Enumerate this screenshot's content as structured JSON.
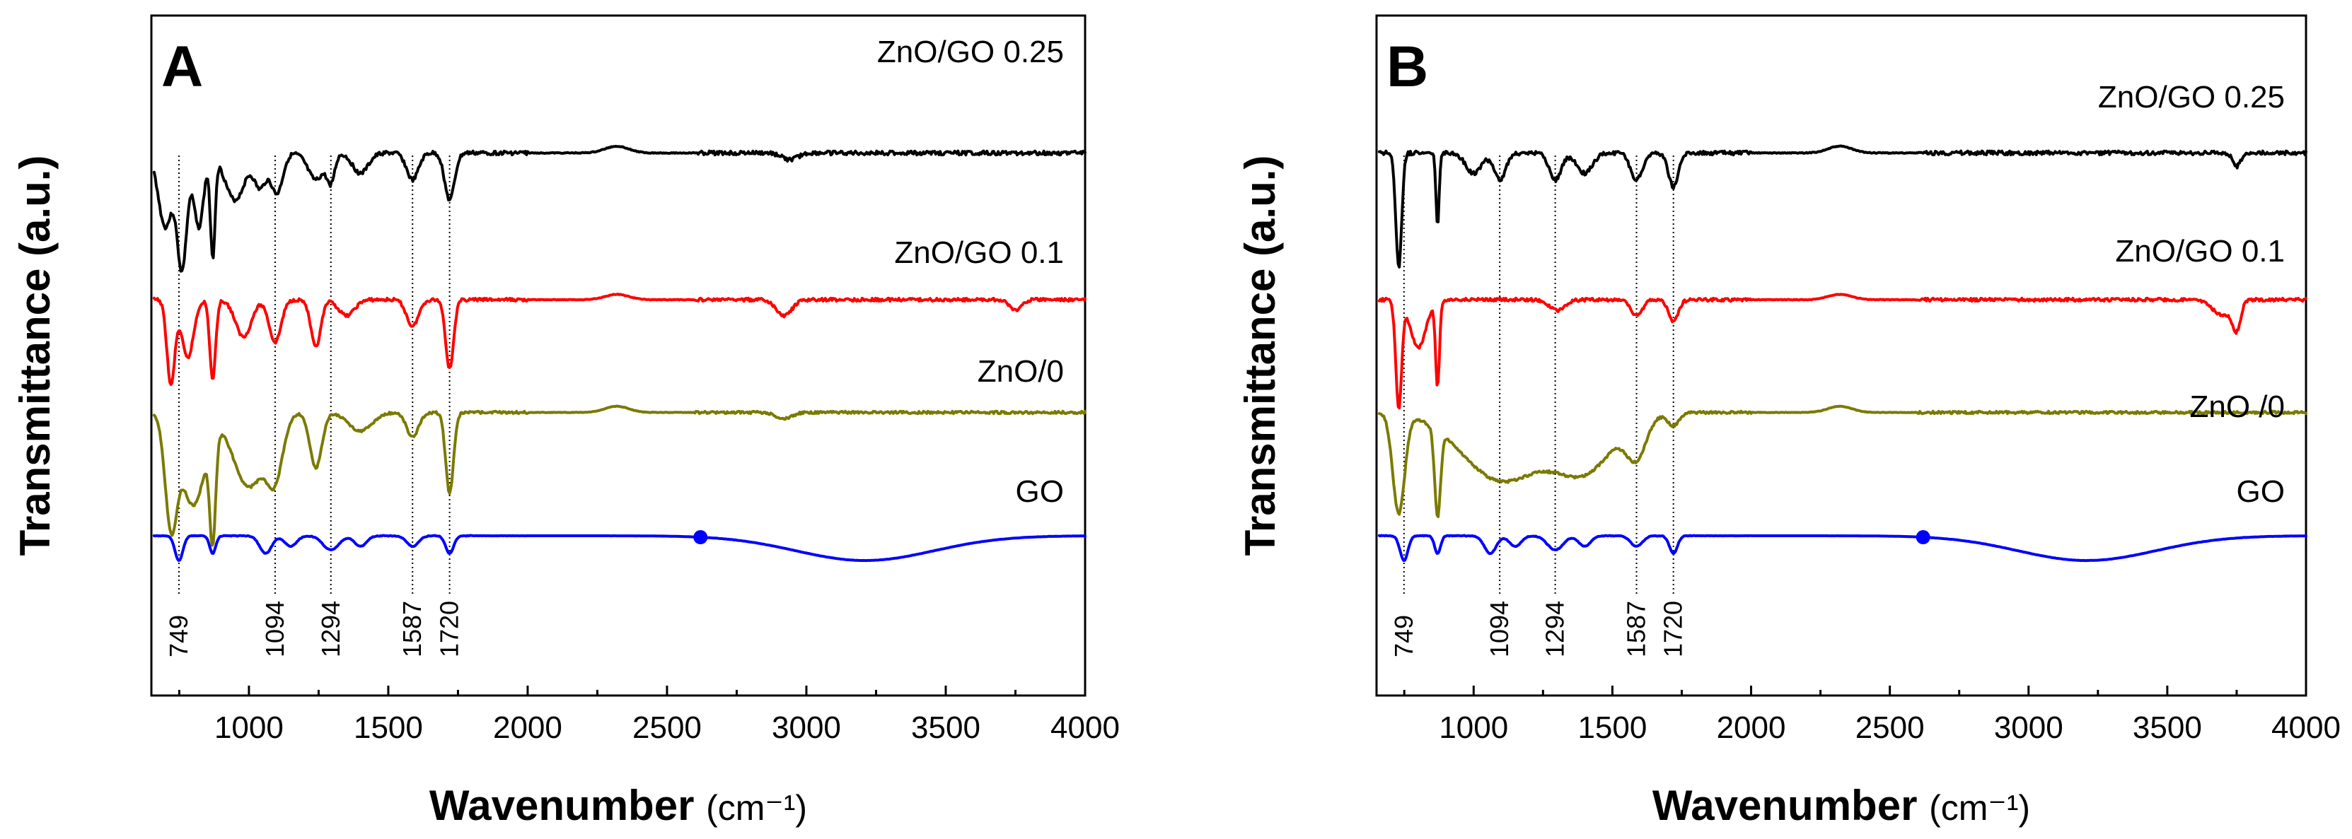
{
  "chart_data": [
    {
      "type": "line",
      "panel": "A",
      "xlabel": "Wavenumber",
      "xlabel_unit": "(cm⁻¹)",
      "ylabel": "Transmittance (a.u.)",
      "xlim": [
        650,
        4000
      ],
      "xticks": [
        1000,
        1500,
        2000,
        2500,
        3000,
        3500,
        4000
      ],
      "xtick_labels": [
        "1000",
        "1500",
        "2000",
        "2500",
        "3000",
        "3500",
        "4000"
      ],
      "yticks": [],
      "reference_lines": [
        749,
        1094,
        1294,
        1587,
        1720
      ],
      "reference_line_labels": [
        "749",
        "1094",
        "1294",
        "1587",
        "1720"
      ],
      "legend_position": "labels beside each trace",
      "series": [
        {
          "name": "ZnO/GO 0.25",
          "color": "#000000",
          "baseline": 0.06,
          "dips": [
            [
              700,
              0.55,
              35
            ],
            [
              760,
              0.85,
              25
            ],
            [
              820,
              0.55,
              25
            ],
            [
              870,
              0.75,
              12
            ],
            [
              950,
              0.35,
              50
            ],
            [
              1040,
              0.25,
              30
            ],
            [
              1100,
              0.3,
              30
            ],
            [
              1240,
              0.2,
              40
            ],
            [
              1294,
              0.2,
              20
            ],
            [
              1400,
              0.15,
              40
            ],
            [
              1587,
              0.2,
              30
            ],
            [
              1720,
              0.35,
              25
            ],
            [
              2940,
              0.05,
              40
            ]
          ],
          "humps": [
            [
              2320,
              0.05,
              60
            ]
          ],
          "noise": 0.03
        },
        {
          "name": "ZnO/GO 0.1",
          "color": "#ff0000",
          "baseline": 0.06,
          "dips": [
            [
              720,
              0.8,
              20
            ],
            [
              780,
              0.55,
              30
            ],
            [
              870,
              0.75,
              15
            ],
            [
              980,
              0.35,
              40
            ],
            [
              1094,
              0.4,
              30
            ],
            [
              1240,
              0.45,
              25
            ],
            [
              1350,
              0.15,
              40
            ],
            [
              1587,
              0.25,
              30
            ],
            [
              1720,
              0.65,
              20
            ],
            [
              2920,
              0.15,
              40
            ],
            [
              3750,
              0.1,
              30
            ]
          ],
          "humps": [
            [
              2320,
              0.05,
              60
            ]
          ],
          "noise": 0.03
        },
        {
          "name": "ZnO/0",
          "color": "#7a7a00",
          "baseline": 0.06,
          "dips": [
            [
              720,
              0.85,
              30
            ],
            [
              800,
              0.75,
              60
            ],
            [
              870,
              0.85,
              15
            ],
            [
              1000,
              0.6,
              80
            ],
            [
              1094,
              0.45,
              40
            ],
            [
              1240,
              0.45,
              30
            ],
            [
              1400,
              0.15,
              60
            ],
            [
              1587,
              0.2,
              30
            ],
            [
              1720,
              0.65,
              20
            ],
            [
              2920,
              0.05,
              40
            ]
          ],
          "humps": [
            [
              2320,
              0.05,
              60
            ]
          ],
          "noise": 0.02
        },
        {
          "name": "GO",
          "color": "#0000ff",
          "baseline": 0.06,
          "dips": [
            [
              749,
              0.35,
              20
            ],
            [
              870,
              0.25,
              15
            ],
            [
              1060,
              0.25,
              30
            ],
            [
              1150,
              0.15,
              30
            ],
            [
              1294,
              0.2,
              40
            ],
            [
              1400,
              0.15,
              30
            ],
            [
              1587,
              0.15,
              30
            ],
            [
              1720,
              0.25,
              20
            ],
            [
              3210,
              0.35,
              350
            ]
          ],
          "humps": [],
          "noise": 0.01,
          "marker_point": 2620
        }
      ]
    },
    {
      "type": "line",
      "panel": "B",
      "xlabel": "Wavenumber",
      "xlabel_unit": "(cm⁻¹)",
      "ylabel": "Transmittance (a.u.)",
      "xlim": [
        650,
        4000
      ],
      "xticks": [
        1000,
        1500,
        2000,
        2500,
        3000,
        3500,
        4000
      ],
      "xtick_labels": [
        "1000",
        "1500",
        "2000",
        "2500",
        "3000",
        "3500",
        "4000"
      ],
      "yticks": [],
      "reference_lines": [
        749,
        1094,
        1294,
        1587,
        1720
      ],
      "reference_line_labels": [
        "749",
        "1094",
        "1294",
        "1587",
        "1720"
      ],
      "legend_position": "labels beside each trace",
      "series": [
        {
          "name": "ZnO/GO 0.25",
          "color": "#000000",
          "baseline": 0.06,
          "dips": [
            [
              730,
              0.85,
              15
            ],
            [
              870,
              0.55,
              8
            ],
            [
              1000,
              0.15,
              40
            ],
            [
              1094,
              0.2,
              30
            ],
            [
              1294,
              0.2,
              30
            ],
            [
              1400,
              0.15,
              40
            ],
            [
              1587,
              0.2,
              30
            ],
            [
              1720,
              0.25,
              25
            ],
            [
              3750,
              0.1,
              20
            ]
          ],
          "humps": [
            [
              2320,
              0.05,
              60
            ]
          ],
          "noise": 0.03
        },
        {
          "name": "ZnO/GO 0.1",
          "color": "#ff0000",
          "baseline": 0.06,
          "dips": [
            [
              730,
              1.0,
              15
            ],
            [
              800,
              0.45,
              40
            ],
            [
              870,
              0.8,
              10
            ],
            [
              1300,
              0.1,
              40
            ],
            [
              1587,
              0.15,
              30
            ],
            [
              1720,
              0.2,
              25
            ],
            [
              3700,
              0.15,
              50
            ],
            [
              3750,
              0.25,
              20
            ]
          ],
          "humps": [
            [
              2320,
              0.05,
              60
            ]
          ],
          "noise": 0.03
        },
        {
          "name": "ZnO /0",
          "color": "#7a7a00",
          "baseline": 0.06,
          "dips": [
            [
              730,
              0.8,
              30
            ],
            [
              870,
              0.7,
              15
            ],
            [
              1100,
              0.55,
              200
            ],
            [
              1400,
              0.45,
              150
            ],
            [
              1587,
              0.3,
              50
            ],
            [
              1720,
              0.1,
              30
            ]
          ],
          "humps": [
            [
              2320,
              0.05,
              60
            ]
          ],
          "noise": 0.02
        },
        {
          "name": "GO",
          "color": "#0000ff",
          "baseline": 0.06,
          "dips": [
            [
              749,
              0.35,
              20
            ],
            [
              870,
              0.25,
              15
            ],
            [
              1060,
              0.25,
              30
            ],
            [
              1150,
              0.15,
              30
            ],
            [
              1294,
              0.2,
              40
            ],
            [
              1400,
              0.15,
              30
            ],
            [
              1587,
              0.15,
              30
            ],
            [
              1720,
              0.25,
              20
            ],
            [
              3210,
              0.35,
              350
            ]
          ],
          "humps": [],
          "noise": 0.01,
          "marker_point": 2620
        }
      ]
    }
  ]
}
